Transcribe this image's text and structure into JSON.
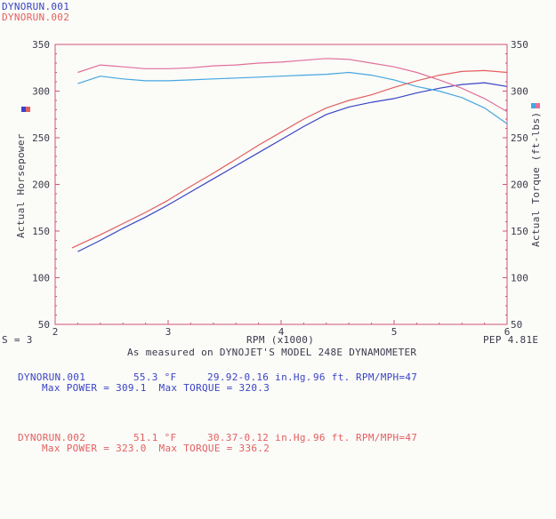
{
  "header": {
    "run1": "DYNORUN.001",
    "run2": "DYNORUN.002"
  },
  "footer": {
    "smoothing": "S = 3",
    "caption": "As measured on DYNOJET'S MODEL 248E DYNAMOMETER",
    "pep": "PEP 4.81E"
  },
  "runs": [
    {
      "name": "DYNORUN.001",
      "temp": "55.3 °F",
      "baro": "29.92-0.16 in.Hg.",
      "elev": "96 ft.",
      "ratio": "RPM/MPH=47",
      "max_line": "Max POWER = 309.1  Max TORQUE = 320.3",
      "color": "#3a44c4"
    },
    {
      "name": "DYNORUN.002",
      "temp": "51.1 °F",
      "baro": "30.37-0.12 in.Hg.",
      "elev": "96 ft.",
      "ratio": "RPM/MPH=47",
      "max_line": "Max POWER = 323.0  Max TORQUE = 336.2",
      "color": "#e2605e"
    }
  ],
  "chart_data": {
    "type": "line",
    "xlabel": "RPM (x1000)",
    "ylabel_left": "Actual Horsepower",
    "ylabel_right": "Actual Torque (ft-lbs)",
    "xlim": [
      2,
      6
    ],
    "ylim": [
      50,
      350
    ],
    "x_ticks": [
      "2",
      "3",
      "4",
      "5",
      "6"
    ],
    "y_ticks": [
      "50",
      "100",
      "150",
      "200",
      "250",
      "300",
      "350"
    ],
    "grid": false,
    "colors": {
      "axis": "#d0547a",
      "tick_text": "#3a3a4a"
    },
    "series": [
      {
        "name": "DYNORUN.001",
        "kind": "power",
        "color": "#3a44c4",
        "x": [
          2.2,
          2.4,
          2.6,
          2.8,
          3.0,
          3.2,
          3.4,
          3.6,
          3.8,
          4.0,
          4.2,
          4.4,
          4.6,
          4.8,
          5.0,
          5.2,
          5.4,
          5.6,
          5.8,
          6.0
        ],
        "y": [
          128,
          140,
          153,
          165,
          178,
          192,
          206,
          220,
          234,
          248,
          262,
          275,
          283,
          288,
          292,
          298,
          303,
          307,
          309,
          305
        ]
      },
      {
        "name": "DYNORUN.001",
        "kind": "torque",
        "color": "#45a6e0",
        "x": [
          2.2,
          2.4,
          2.6,
          2.8,
          3.0,
          3.2,
          3.4,
          3.6,
          3.8,
          4.0,
          4.2,
          4.4,
          4.6,
          4.8,
          5.0,
          5.2,
          5.4,
          5.6,
          5.8,
          6.0
        ],
        "y": [
          308,
          316,
          313,
          311,
          311,
          312,
          313,
          314,
          315,
          316,
          317,
          318,
          320,
          317,
          312,
          305,
          300,
          293,
          282,
          265
        ]
      },
      {
        "name": "DYNORUN.002",
        "kind": "power",
        "color": "#e2605e",
        "x": [
          2.15,
          2.4,
          2.6,
          2.8,
          3.0,
          3.2,
          3.4,
          3.6,
          3.8,
          4.0,
          4.2,
          4.4,
          4.6,
          4.8,
          5.0,
          5.2,
          5.4,
          5.6,
          5.8,
          6.0
        ],
        "y": [
          132,
          146,
          158,
          170,
          183,
          198,
          212,
          227,
          242,
          256,
          270,
          282,
          290,
          296,
          304,
          311,
          317,
          321,
          322,
          320
        ]
      },
      {
        "name": "DYNORUN.002",
        "kind": "torque",
        "color": "#e0709a",
        "x": [
          2.2,
          2.4,
          2.6,
          2.8,
          3.0,
          3.2,
          3.4,
          3.6,
          3.8,
          4.0,
          4.2,
          4.4,
          4.6,
          4.8,
          5.0,
          5.2,
          5.4,
          5.6,
          5.8,
          6.0
        ],
        "y": [
          320,
          328,
          326,
          324,
          324,
          325,
          327,
          328,
          330,
          331,
          333,
          335,
          334,
          330,
          326,
          320,
          312,
          303,
          292,
          278
        ]
      }
    ]
  }
}
